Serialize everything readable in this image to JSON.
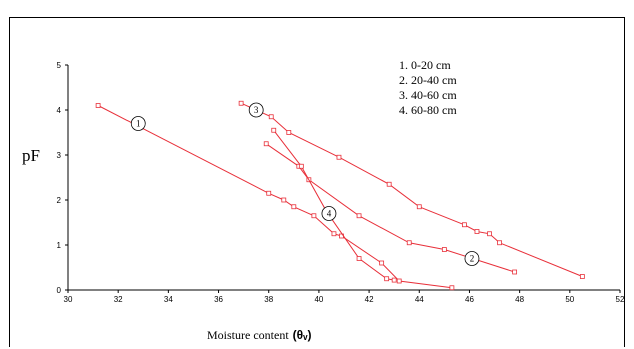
{
  "chart_data": {
    "type": "line",
    "ylabel": "pF",
    "xlabel": "Moisture content",
    "xlabel_unit": "(θᵥ)",
    "xlim": [
      30,
      52
    ],
    "ylim": [
      0,
      5
    ],
    "x_ticks": [
      30,
      32,
      34,
      36,
      38,
      40,
      42,
      44,
      46,
      48,
      50,
      52
    ],
    "y_ticks": [
      0,
      1,
      2,
      3,
      4,
      5
    ],
    "grid": false,
    "legend_position": "top-right",
    "legend": [
      "1. 0-20 cm",
      "2. 20-40 cm",
      "3. 40-60 cm",
      "4. 60-80 cm"
    ],
    "series": [
      {
        "name": "1. 0-20 cm",
        "marker_label": "1",
        "marker_at": [
          32.8,
          3.7
        ],
        "points": [
          [
            31.2,
            4.1
          ],
          [
            38.0,
            2.15
          ],
          [
            38.6,
            2.0
          ],
          [
            39.0,
            1.85
          ],
          [
            39.8,
            1.65
          ],
          [
            40.6,
            1.25
          ],
          [
            40.9,
            1.2
          ],
          [
            42.5,
            0.6
          ],
          [
            43.2,
            0.2
          ],
          [
            45.3,
            0.05
          ]
        ]
      },
      {
        "name": "2. 20-40 cm",
        "marker_label": "2",
        "marker_at": [
          46.1,
          0.7
        ],
        "points": [
          [
            36.9,
            4.15
          ],
          [
            38.1,
            3.85
          ],
          [
            38.8,
            3.5
          ],
          [
            40.8,
            2.95
          ],
          [
            42.8,
            2.35
          ],
          [
            44.0,
            1.85
          ],
          [
            45.8,
            1.45
          ],
          [
            46.3,
            1.3
          ],
          [
            46.8,
            1.25
          ],
          [
            47.2,
            1.05
          ],
          [
            50.5,
            0.3
          ]
        ]
      },
      {
        "name": "3. 40-60 cm",
        "marker_label": "3",
        "marker_at": [
          37.5,
          4.0
        ],
        "points": [
          [
            37.9,
            3.25
          ],
          [
            39.2,
            2.75
          ],
          [
            39.6,
            2.45
          ],
          [
            41.6,
            1.65
          ],
          [
            43.6,
            1.05
          ],
          [
            45.0,
            0.9
          ],
          [
            47.8,
            0.4
          ]
        ]
      },
      {
        "name": "4. 60-80 cm",
        "marker_label": "4",
        "marker_at": [
          40.4,
          1.7
        ],
        "points": [
          [
            38.2,
            3.55
          ],
          [
            39.3,
            2.75
          ],
          [
            40.3,
            1.75
          ],
          [
            41.6,
            0.7
          ],
          [
            42.7,
            0.25
          ],
          [
            43.0,
            0.22
          ]
        ]
      }
    ],
    "colors": {
      "series": "#e8303a",
      "axis": "#000000"
    }
  }
}
